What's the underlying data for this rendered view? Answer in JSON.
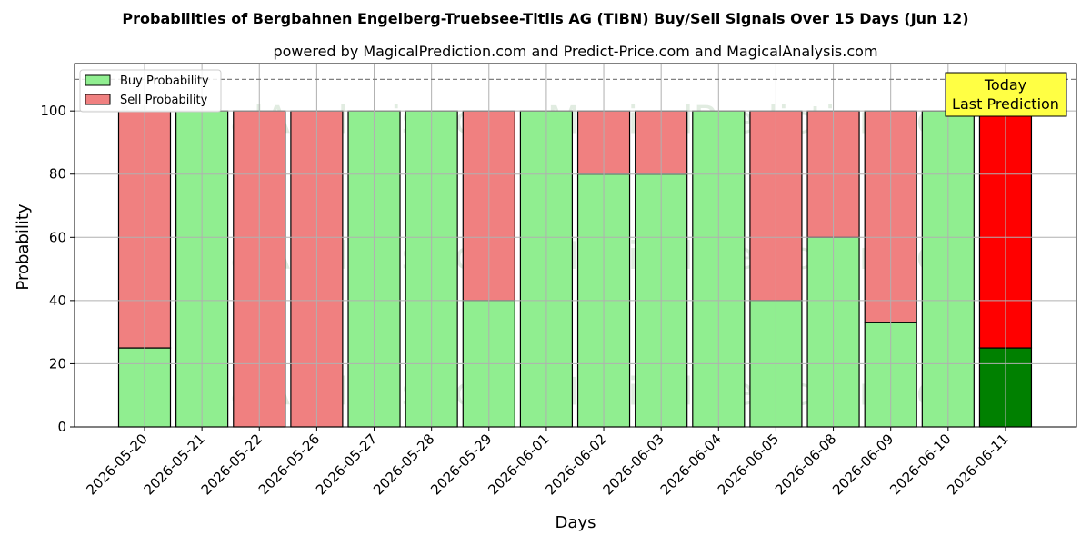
{
  "chart_data": {
    "type": "bar",
    "stacked": true,
    "title": "Probabilities of Bergbahnen Engelberg-Truebsee-Titlis AG (TIBN) Buy/Sell Signals Over 15 Days (Jun 12)",
    "subtitle": "powered by MagicalPrediction.com and Predict-Price.com and MagicalAnalysis.com",
    "xlabel": "Days",
    "ylabel": "Probability",
    "ylim": [
      0,
      115
    ],
    "yticks": [
      0,
      20,
      40,
      60,
      80,
      100
    ],
    "reference_line": 110,
    "grid": true,
    "legend_position": "top-left",
    "categories": [
      "2026-05-20",
      "2026-05-21",
      "2026-05-22",
      "2026-05-26",
      "2026-05-27",
      "2026-05-28",
      "2026-05-29",
      "2026-06-01",
      "2026-06-02",
      "2026-06-03",
      "2026-06-04",
      "2026-06-05",
      "2026-06-08",
      "2026-06-09",
      "2026-06-10",
      "2026-06-11"
    ],
    "series": [
      {
        "name": "Buy Probability",
        "color": "#90ee90",
        "values": [
          25,
          100,
          0,
          0,
          100,
          100,
          40,
          100,
          80,
          80,
          100,
          40,
          60,
          33,
          100,
          25
        ]
      },
      {
        "name": "Sell Probability",
        "color": "#f08080",
        "values": [
          75,
          0,
          100,
          100,
          0,
          0,
          60,
          0,
          20,
          20,
          0,
          60,
          40,
          67,
          0,
          75
        ]
      }
    ],
    "highlight": {
      "index": 15,
      "buy_color": "#008000",
      "sell_color": "#ff0000"
    },
    "annotation": {
      "lines": [
        "Today",
        "Last Prediction"
      ],
      "background": "#ffff44"
    },
    "watermarks": [
      "MagicalAnalysis.com",
      "MagicalPrediction.com"
    ]
  }
}
